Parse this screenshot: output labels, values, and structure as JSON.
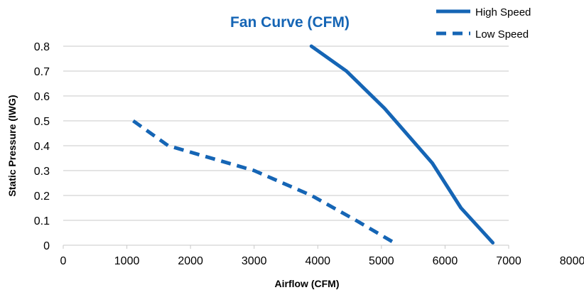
{
  "chart_data": {
    "type": "line",
    "title": "Fan Curve (CFM)",
    "xlabel": "Airflow (CFM)",
    "ylabel": "Static Pressure (IWG)",
    "xlim": [
      0,
      8000
    ],
    "ylim": [
      0,
      0.8
    ],
    "x_ticks": [
      "0",
      "1000",
      "2000",
      "3000",
      "4000",
      "5000",
      "6000",
      "7000",
      "8000"
    ],
    "y_ticks": [
      "0",
      "0.1",
      "0.2",
      "0.3",
      "0.4",
      "0.5",
      "0.6",
      "0.7",
      "0.8"
    ],
    "grid": true,
    "legend_position": "top-right",
    "series": [
      {
        "name": "High Speed",
        "style": "solid",
        "color": "#1565b5",
        "points": [
          [
            3900,
            0.8
          ],
          [
            4450,
            0.7
          ],
          [
            5050,
            0.55
          ],
          [
            5800,
            0.33
          ],
          [
            6250,
            0.15
          ],
          [
            6750,
            0.01
          ]
        ]
      },
      {
        "name": "Low Speed",
        "style": "dashed",
        "color": "#1565b5",
        "points": [
          [
            1100,
            0.5
          ],
          [
            1650,
            0.4
          ],
          [
            3000,
            0.3
          ],
          [
            3900,
            0.2
          ],
          [
            4600,
            0.1
          ],
          [
            5200,
            0.01
          ]
        ]
      }
    ]
  }
}
